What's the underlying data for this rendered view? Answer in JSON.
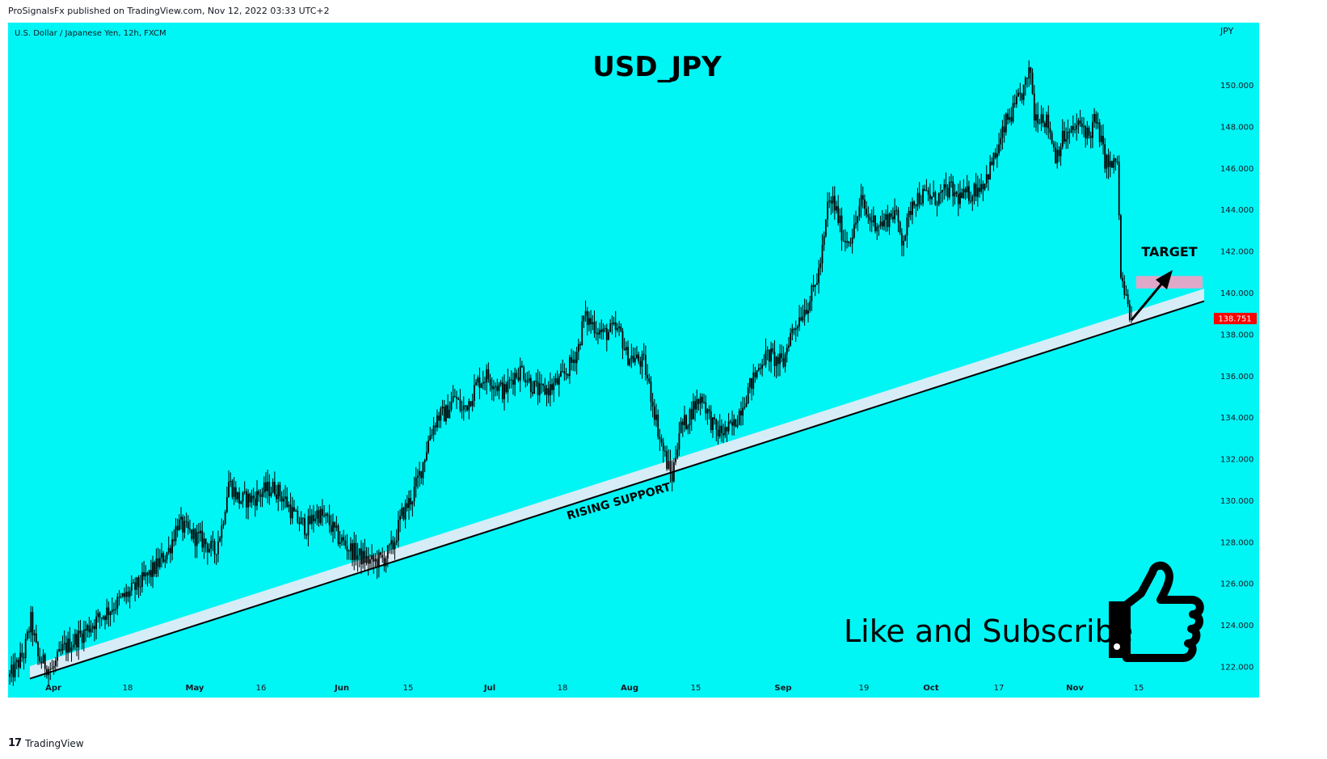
{
  "header": {
    "published_text": "ProSignalsFx published on TradingView.com, Nov 12, 2022 03:33 UTC+2"
  },
  "footer": {
    "brand": "TradingView",
    "logo_glyph": "17"
  },
  "colors": {
    "background": "#00f5f5",
    "candle": "#000000",
    "support_band": "#d6ecf7",
    "target_box": "#e0a8c8",
    "price_badge": "#ff0000"
  },
  "chart_data": {
    "type": "candlestick",
    "symbol_info": "U.S. Dollar / Japanese Yen, 12h, FXCM",
    "title": "USD_JPY",
    "currency_label": "JPY",
    "last_price": "138.751",
    "ylim": [
      120.5,
      153.0
    ],
    "y_ticks": [
      "122.000",
      "124.000",
      "126.000",
      "128.000",
      "130.000",
      "132.000",
      "134.000",
      "136.000",
      "138.000",
      "140.000",
      "142.000",
      "144.000",
      "146.000",
      "148.000",
      "150.000"
    ],
    "x_ticks": [
      {
        "label": "Apr",
        "bold": true
      },
      {
        "label": "18",
        "bold": false
      },
      {
        "label": "May",
        "bold": true
      },
      {
        "label": "16",
        "bold": false
      },
      {
        "label": "Jun",
        "bold": true
      },
      {
        "label": "15",
        "bold": false
      },
      {
        "label": "Jul",
        "bold": true
      },
      {
        "label": "18",
        "bold": false
      },
      {
        "label": "Aug",
        "bold": true
      },
      {
        "label": "15",
        "bold": false
      },
      {
        "label": "Sep",
        "bold": true
      },
      {
        "label": "19",
        "bold": false
      },
      {
        "label": "Oct",
        "bold": true
      },
      {
        "label": "17",
        "bold": false
      },
      {
        "label": "Nov",
        "bold": true
      },
      {
        "label": "15",
        "bold": false
      }
    ],
    "path_points": [
      [
        0,
        121.5
      ],
      [
        8,
        122.6
      ],
      [
        12,
        124.2
      ],
      [
        16,
        122.4
      ],
      [
        24,
        121.8
      ],
      [
        30,
        122.8
      ],
      [
        40,
        123.5
      ],
      [
        50,
        124.3
      ],
      [
        60,
        125.0
      ],
      [
        70,
        125.7
      ],
      [
        80,
        126.5
      ],
      [
        90,
        127.6
      ],
      [
        95,
        128.9
      ],
      [
        102,
        128.4
      ],
      [
        110,
        128.0
      ],
      [
        116,
        127.5
      ],
      [
        120,
        128.7
      ],
      [
        124,
        130.9
      ],
      [
        130,
        130.0
      ],
      [
        138,
        130.1
      ],
      [
        145,
        130.5
      ],
      [
        150,
        130.6
      ],
      [
        156,
        130.0
      ],
      [
        162,
        129.1
      ],
      [
        168,
        128.7
      ],
      [
        174,
        129.4
      ],
      [
        180,
        129.0
      ],
      [
        186,
        128.2
      ],
      [
        192,
        127.7
      ],
      [
        198,
        127.3
      ],
      [
        205,
        127.0
      ],
      [
        212,
        127.2
      ],
      [
        217,
        127.8
      ],
      [
        222,
        129.3
      ],
      [
        228,
        130.2
      ],
      [
        233,
        131.5
      ],
      [
        238,
        133.2
      ],
      [
        242,
        134.0
      ],
      [
        247,
        134.2
      ],
      [
        252,
        135.0
      ],
      [
        256,
        134.3
      ],
      [
        260,
        134.8
      ],
      [
        265,
        135.7
      ],
      [
        270,
        136.0
      ],
      [
        275,
        135.6
      ],
      [
        280,
        135.2
      ],
      [
        285,
        136.0
      ],
      [
        290,
        136.3
      ],
      [
        295,
        135.6
      ],
      [
        300,
        135.2
      ],
      [
        306,
        135.4
      ],
      [
        312,
        135.8
      ],
      [
        318,
        136.6
      ],
      [
        322,
        137.4
      ],
      [
        325,
        138.8
      ],
      [
        330,
        138.5
      ],
      [
        336,
        138.0
      ],
      [
        342,
        138.2
      ],
      [
        346,
        138.0
      ],
      [
        349,
        137.0
      ],
      [
        354,
        136.8
      ],
      [
        359,
        136.6
      ],
      [
        364,
        134.7
      ],
      [
        368,
        133.0
      ],
      [
        372,
        131.8
      ],
      [
        375,
        131.1
      ],
      [
        379,
        133.4
      ],
      [
        383,
        133.8
      ],
      [
        387,
        134.5
      ],
      [
        392,
        135.0
      ],
      [
        396,
        134.0
      ],
      [
        400,
        133.3
      ],
      [
        405,
        133.3
      ],
      [
        410,
        133.6
      ],
      [
        414,
        134.5
      ],
      [
        418,
        135.3
      ],
      [
        422,
        136.0
      ],
      [
        426,
        136.8
      ],
      [
        430,
        137.0
      ],
      [
        434,
        136.7
      ],
      [
        438,
        136.6
      ],
      [
        441,
        137.8
      ],
      [
        444,
        138.3
      ],
      [
        448,
        139.0
      ],
      [
        452,
        139.5
      ],
      [
        455,
        140.1
      ],
      [
        458,
        141.0
      ],
      [
        461,
        142.5
      ],
      [
        463,
        144.2
      ],
      [
        466,
        144.4
      ],
      [
        469,
        143.6
      ],
      [
        472,
        142.6
      ],
      [
        475,
        142.6
      ],
      [
        478,
        143.0
      ],
      [
        482,
        144.4
      ],
      [
        486,
        143.6
      ],
      [
        490,
        143.4
      ],
      [
        494,
        143.3
      ],
      [
        497,
        143.6
      ],
      [
        501,
        143.9
      ],
      [
        505,
        142.6
      ],
      [
        507,
        142.9
      ],
      [
        509,
        143.6
      ],
      [
        511,
        144.5
      ],
      [
        515,
        144.6
      ],
      [
        519,
        144.7
      ],
      [
        523,
        144.5
      ],
      [
        528,
        144.7
      ],
      [
        532,
        145.0
      ],
      [
        536,
        144.6
      ],
      [
        540,
        144.6
      ],
      [
        544,
        144.8
      ],
      [
        548,
        145.1
      ],
      [
        552,
        145.4
      ],
      [
        556,
        146.2
      ],
      [
        560,
        147.0
      ],
      [
        564,
        148.2
      ],
      [
        568,
        148.7
      ],
      [
        572,
        149.4
      ],
      [
        576,
        150.2
      ],
      [
        578,
        150.7
      ],
      [
        580,
        148.5
      ],
      [
        584,
        148.6
      ],
      [
        588,
        148.1
      ],
      [
        592,
        146.6
      ],
      [
        596,
        147.4
      ],
      [
        600,
        147.6
      ],
      [
        604,
        148.0
      ],
      [
        608,
        148.0
      ],
      [
        611,
        147.5
      ],
      [
        614,
        148.3
      ],
      [
        617,
        147.6
      ],
      [
        620,
        146.4
      ],
      [
        624,
        146.0
      ],
      [
        627,
        146.4
      ],
      [
        629,
        140.7
      ],
      [
        632,
        139.6
      ],
      [
        635,
        138.75
      ]
    ],
    "support_line": {
      "x": [
        0,
        640
      ],
      "y": [
        121.1,
        138.6
      ],
      "band_width": 0.6
    },
    "target": {
      "label": "TARGET",
      "y_range": [
        140.2,
        140.8
      ]
    },
    "annotations": {
      "support_label": "RISING SUPPORT",
      "cta": "Like and Subscribe"
    }
  }
}
